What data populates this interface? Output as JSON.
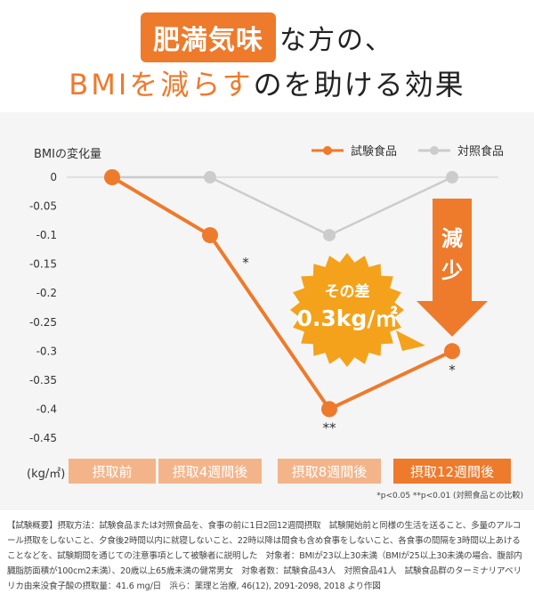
{
  "headline": {
    "highlight": "肥満気味",
    "line1_rest": "な方の、",
    "line2_orange": "BMIを減らす",
    "line2_black": "のを助ける効果"
  },
  "chart_data": {
    "type": "line",
    "ylabel": "BMIの変化量",
    "unit_label": "(kg/㎡)",
    "categories": [
      "摂取前",
      "摂取4週間後",
      "摂取8週間後",
      "摂取12週間後"
    ],
    "yticks": [
      "0",
      "-0.05",
      "-0.1",
      "-0.15",
      "-0.2",
      "-0.25",
      "-0.3",
      "-0.35",
      "-0.4",
      "-0.45"
    ],
    "ylim": [
      -0.45,
      0
    ],
    "series": [
      {
        "name": "試験食品",
        "values": [
          0,
          -0.1,
          -0.4,
          -0.3
        ],
        "color": "#ee7a2c",
        "marks": [
          "",
          "*",
          "**",
          "*"
        ]
      },
      {
        "name": "対照食品",
        "values": [
          0,
          0,
          -0.1,
          0
        ],
        "color": "#cccccc"
      }
    ],
    "legend_position": "top-right",
    "annotations": {
      "burst_line1": "その差",
      "burst_line2": "0.3kg/㎡",
      "arrow_label": "減\n少",
      "significance": "*p<0.05 **p<0.01 (対照食品との比較)"
    },
    "colors": {
      "accent": "#ee7a2c",
      "grid": "#cccccc",
      "label_box": "#f4b48a",
      "label_box_active": "#ee7a2c"
    }
  },
  "footnote": "【試験概要】摂取方法：試験食品または対照食品を、食事の前に1日2回12週間摂取　試験開始前と同様の生活を送ること、多量のアルコール摂取をしないこと、夕食後2時間以内に就寝しないこと、22時以降は間食も含め食事をしないこと、各食事の間隔を3時間以上あけることなどを、試験期間を通じての注意事項として被験者に説明した　対象者：BMIが23以上30未満（BMIが25以上30未満の場合、腹部内臓脂肪面積が100cm2未満）、20歳以上65歳未満の健常男女　対象者数：試験食品43人　対照食品41人　試験食品群のターミナリアベリリカ由来没食子酸の摂取量：41.6 mg/日　浜ら：薬理と治療, 46(12), 2091-2098, 2018 より作図"
}
